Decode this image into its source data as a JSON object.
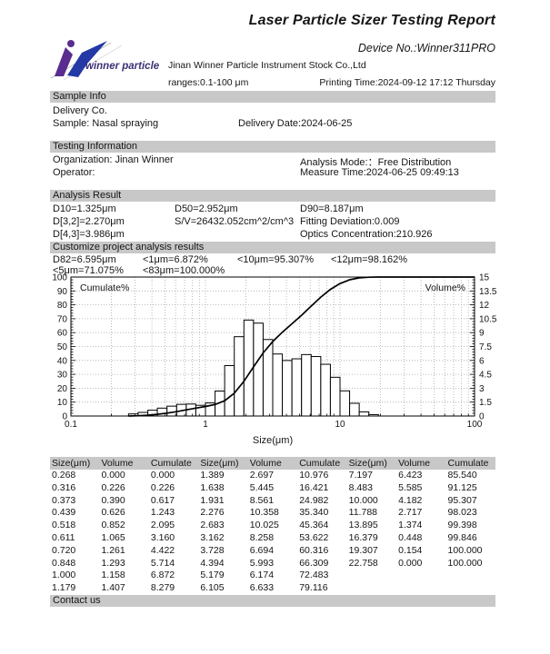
{
  "header": {
    "title": "Laser Particle Sizer Testing Report",
    "device_no": "Device No.:Winner311PRO",
    "logo_text": "winner particle",
    "company": "Jinan Winner Particle Instrument Stock Co.,Ltd",
    "ranges": "ranges:0.1-100 μm",
    "printing_time": "Printing Time:2024-09-12 17:12 Thursday"
  },
  "sample_info": {
    "section_title": "Sample Info",
    "delivery_co": "Delivery Co.",
    "sample": "Sample: Nasal spraying",
    "delivery_date": "Delivery Date:2024-06-25"
  },
  "testing_info": {
    "section_title": "Testing Information",
    "organization": "Organization: Jinan Winner",
    "analysis_mode": "Analysis Mode:：Free Distribution",
    "operator": "Operator:",
    "measure_time": "Measure Time:2024-06-25 09:49:13"
  },
  "analysis_result": {
    "section_title": "Analysis Result",
    "rows": [
      [
        "D10=1.325μm",
        "D50=2.952μm",
        "D90=8.187μm"
      ],
      [
        "D[3,2]=2.270μm",
        "S/V=26432.052cm^2/cm^3",
        "Fitting Deviation:0.009"
      ],
      [
        "D[4,3]=3.986μm",
        "",
        "Optics Concentration:210.926"
      ]
    ]
  },
  "customize": {
    "section_title": "Customize project analysis results",
    "row1": [
      "D82=6.595μm",
      "<1μm=6.872%",
      "<10μm=95.307%",
      "<12μm=98.162%"
    ],
    "row2": [
      "<5μm=71.075%",
      "<83μm=100.000%"
    ]
  },
  "chart_data": {
    "type": "histogram+cumulative-line",
    "xlabel": "Size(μm)",
    "x_scale": "log",
    "x_range": [
      0.1,
      100
    ],
    "x_tick_values": [
      0.1,
      1,
      10,
      100
    ],
    "x_tick_labels": [
      "0.1",
      "1",
      "10",
      "100"
    ],
    "left_axis": {
      "label": "Cumulate%",
      "min": 0,
      "max": 100,
      "tick_step": 10
    },
    "right_axis": {
      "label": "Volume%",
      "min": 0,
      "max": 15,
      "tick_step": 1.5
    },
    "grid": true,
    "sizes": [
      0.268,
      0.316,
      0.373,
      0.439,
      0.518,
      0.611,
      0.72,
      0.848,
      1.0,
      1.179,
      1.389,
      1.638,
      1.931,
      2.276,
      2.683,
      3.162,
      3.728,
      4.394,
      5.179,
      6.105,
      7.197,
      8.483,
      10.0,
      11.788,
      13.895,
      16.379,
      19.307,
      22.758
    ],
    "volume": [
      0.0,
      0.226,
      0.39,
      0.626,
      0.852,
      1.065,
      1.261,
      1.293,
      1.158,
      1.407,
      2.697,
      5.445,
      8.561,
      10.358,
      10.025,
      8.258,
      6.694,
      5.993,
      6.174,
      6.633,
      6.423,
      5.585,
      4.182,
      2.717,
      1.374,
      0.448,
      0.154,
      0.0
    ],
    "cumulate": [
      0.0,
      0.226,
      0.617,
      1.243,
      2.095,
      3.16,
      4.422,
      5.714,
      6.872,
      8.279,
      10.976,
      16.421,
      24.982,
      35.34,
      45.364,
      53.622,
      60.316,
      66.309,
      72.483,
      79.116,
      85.54,
      91.125,
      95.307,
      98.023,
      99.398,
      99.846,
      100.0,
      100.0
    ]
  },
  "table": {
    "headers": [
      "Size(μm)",
      "Volume",
      "Cumulate",
      "Size(μm)",
      "Volume",
      "Cumulate",
      "Size(μm)",
      "Volume",
      "Cumulate"
    ],
    "rows": [
      [
        "0.268",
        "0.000",
        "0.000",
        "1.389",
        "2.697",
        "10.976",
        "7.197",
        "6.423",
        "85.540"
      ],
      [
        "0.316",
        "0.226",
        "0.226",
        "1.638",
        "5.445",
        "16.421",
        "8.483",
        "5.585",
        "91.125"
      ],
      [
        "0.373",
        "0.390",
        "0.617",
        "1.931",
        "8.561",
        "24.982",
        "10.000",
        "4.182",
        "95.307"
      ],
      [
        "0.439",
        "0.626",
        "1.243",
        "2.276",
        "10.358",
        "35.340",
        "11.788",
        "2.717",
        "98.023"
      ],
      [
        "0.518",
        "0.852",
        "2.095",
        "2.683",
        "10.025",
        "45.364",
        "13.895",
        "1.374",
        "99.398"
      ],
      [
        "0.611",
        "1.065",
        "3.160",
        "3.162",
        "8.258",
        "53.622",
        "16.379",
        "0.448",
        "99.846"
      ],
      [
        "0.720",
        "1.261",
        "4.422",
        "3.728",
        "6.694",
        "60.316",
        "19.307",
        "0.154",
        "100.000"
      ],
      [
        "0.848",
        "1.293",
        "5.714",
        "4.394",
        "5.993",
        "66.309",
        "22.758",
        "0.000",
        "100.000"
      ],
      [
        "1.000",
        "1.158",
        "6.872",
        "5.179",
        "6.174",
        "72.483",
        "",
        "",
        ""
      ],
      [
        "1.179",
        "1.407",
        "8.279",
        "6.105",
        "6.633",
        "79.116",
        "",
        "",
        ""
      ]
    ]
  },
  "footer": {
    "contact": "Contact us"
  },
  "colors": {
    "section_bar": "#c8c8c8",
    "logo_purple": "#5a2c8f",
    "logo_blue": "#2438a6",
    "logo_text": "#3b3176",
    "grid_line": "#a9a9a9"
  }
}
